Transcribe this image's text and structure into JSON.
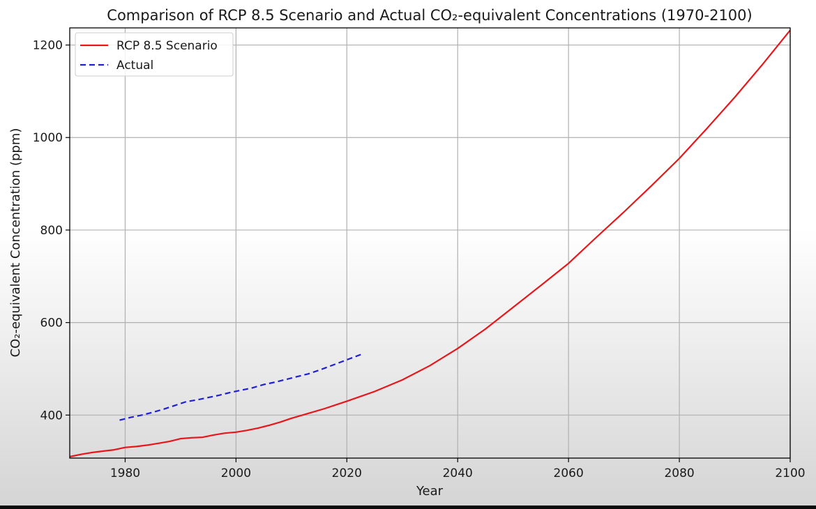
{
  "chart_data": {
    "type": "line",
    "title": "Comparison of RCP 8.5 Scenario and Actual CO₂-equivalent Concentrations (1970-2100)",
    "xlabel": "Year",
    "ylabel": "CO₂-equivalent Concentration (ppm)",
    "xlim": [
      1970,
      2100
    ],
    "ylim": [
      307,
      1237
    ],
    "xticks": [
      1980,
      2000,
      2020,
      2040,
      2060,
      2080,
      2100
    ],
    "yticks": [
      400,
      600,
      800,
      1000,
      1200
    ],
    "grid": true,
    "legend_position": "top-left",
    "series": [
      {
        "name": "RCP 8.5 Scenario",
        "color": "#e8161b",
        "style": "solid",
        "x": [
          1970,
          1972,
          1974,
          1976,
          1978,
          1980,
          1982,
          1984,
          1986,
          1988,
          1990,
          1992,
          1994,
          1996,
          1998,
          2000,
          2002,
          2004,
          2006,
          2008,
          2010,
          2012,
          2014,
          2016,
          2018,
          2020,
          2025,
          2030,
          2035,
          2040,
          2045,
          2050,
          2055,
          2060,
          2065,
          2070,
          2075,
          2080,
          2085,
          2090,
          2095,
          2100
        ],
        "y": [
          310,
          315,
          319,
          322,
          325,
          330,
          332,
          335,
          339,
          343,
          349,
          351,
          352,
          357,
          361,
          363,
          367,
          372,
          378,
          385,
          393,
          400,
          407,
          414,
          422,
          430,
          451,
          476,
          507,
          544,
          586,
          633,
          680,
          728,
          784,
          839,
          896,
          955,
          1020,
          1087,
          1158,
          1232
        ]
      },
      {
        "name": "Actual",
        "color": "#1f1fd6",
        "style": "dashed",
        "x": [
          1979,
          1981,
          1983,
          1985,
          1987,
          1989,
          1991,
          1993,
          1995,
          1997,
          1999,
          2001,
          2003,
          2005,
          2007,
          2009,
          2011,
          2013,
          2015,
          2017,
          2019,
          2021,
          2023
        ],
        "y": [
          389,
          395,
          400,
          406,
          413,
          421,
          429,
          433,
          438,
          443,
          449,
          454,
          459,
          466,
          471,
          477,
          483,
          489,
          497,
          506,
          515,
          524,
          533
        ]
      }
    ]
  }
}
